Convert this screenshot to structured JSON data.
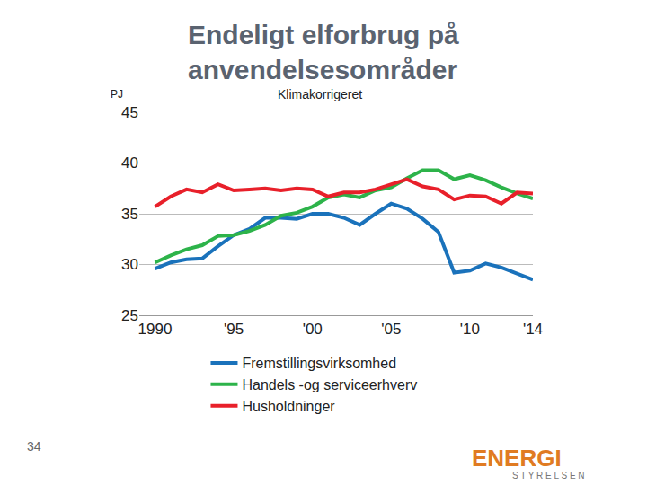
{
  "chart_data": {
    "type": "line",
    "title": "Endeligt elforbrug på anvendelsesområder",
    "subtitle": "Klimakorrigeret",
    "y_label": "PJ",
    "x": [
      1990,
      1991,
      1992,
      1993,
      1994,
      1995,
      1996,
      1997,
      1998,
      1999,
      2000,
      2001,
      2002,
      2003,
      2004,
      2005,
      2006,
      2007,
      2008,
      2009,
      2010,
      2011,
      2012,
      2013,
      2014
    ],
    "series": [
      {
        "name": "Fremstillingsvirksomhed",
        "color": "#1a72bb",
        "values": [
          29.6,
          30.2,
          30.5,
          30.6,
          31.8,
          32.9,
          33.5,
          34.6,
          34.6,
          34.5,
          35.0,
          35.0,
          34.6,
          33.9,
          35.0,
          36.0,
          35.5,
          34.5,
          33.2,
          29.2,
          29.4,
          30.1,
          29.7,
          29.1,
          28.5
        ]
      },
      {
        "name": "Handels -og serviceerhverv",
        "color": "#2db34a",
        "values": [
          30.2,
          30.9,
          31.5,
          31.9,
          32.8,
          32.9,
          33.3,
          33.9,
          34.8,
          35.1,
          35.7,
          36.6,
          36.9,
          36.6,
          37.3,
          37.6,
          38.5,
          39.3,
          39.3,
          38.4,
          38.8,
          38.3,
          37.6,
          37.0,
          36.5
        ]
      },
      {
        "name": "Husholdninger",
        "color": "#e8202a",
        "values": [
          35.7,
          36.7,
          37.4,
          37.1,
          37.9,
          37.3,
          37.4,
          37.5,
          37.3,
          37.5,
          37.4,
          36.7,
          37.1,
          37.1,
          37.4,
          37.9,
          38.4,
          37.7,
          37.4,
          36.4,
          36.8,
          36.7,
          36.0,
          37.1,
          37.0
        ]
      }
    ],
    "xlim": [
      1989,
      2014
    ],
    "xticks": [
      1990,
      {
        "value": 1995,
        "label": "'95"
      },
      {
        "value": 2000,
        "label": "'00"
      },
      {
        "value": 2005,
        "label": "'05"
      },
      {
        "value": 2010,
        "label": "'10"
      },
      {
        "value": 2014,
        "label": "'14"
      }
    ],
    "ylim": [
      25,
      45
    ],
    "yticks": [
      25,
      30,
      35,
      40,
      45
    ],
    "grid": true,
    "legend": "bottom"
  },
  "slide": {
    "page_number": "34",
    "logo": [
      "ENERGI",
      "STYRELSEN"
    ]
  }
}
